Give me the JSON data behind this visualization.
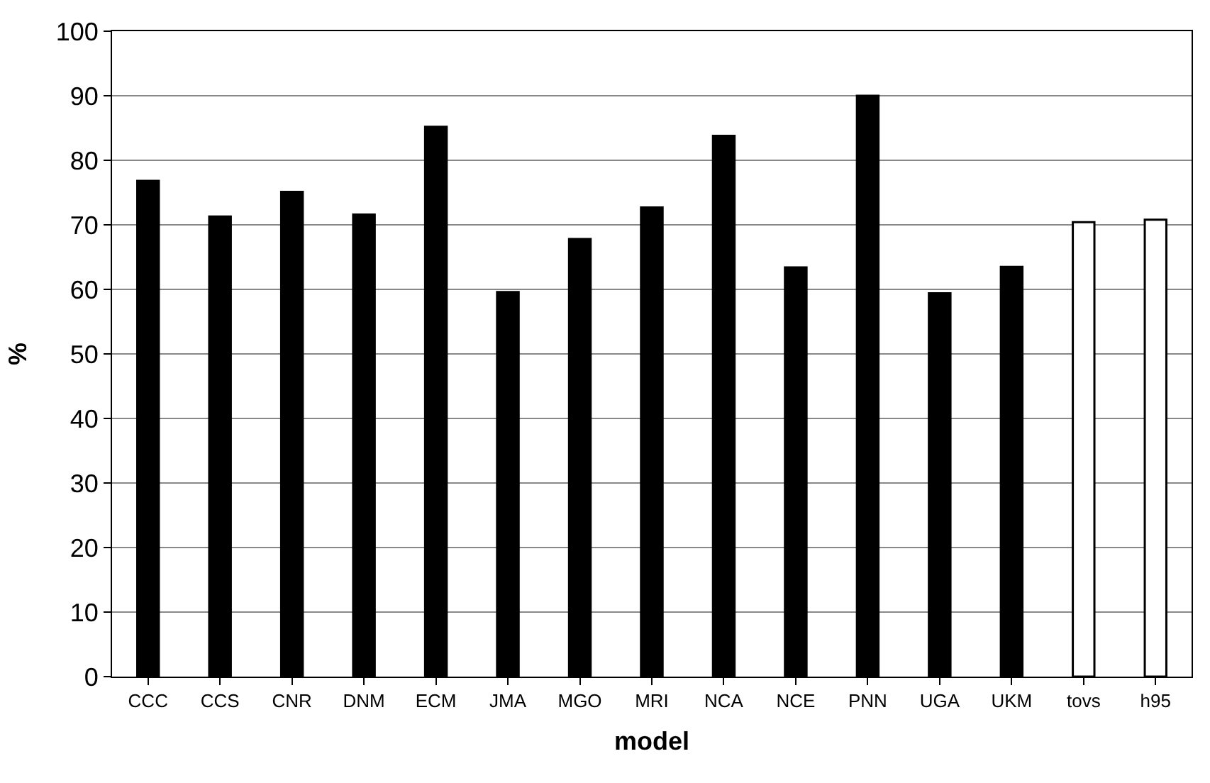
{
  "chart_data": {
    "type": "bar",
    "xlabel": "model",
    "ylabel": "%",
    "categories": [
      "CCC",
      "CCS",
      "CNR",
      "DNM",
      "ECM",
      "JMA",
      "MGO",
      "MRI",
      "NCA",
      "NCE",
      "PNN",
      "UGA",
      "UKM",
      "tovs",
      "h95"
    ],
    "values": [
      76.8,
      71.3,
      75.1,
      71.6,
      85.2,
      59.6,
      67.8,
      72.7,
      83.8,
      63.4,
      90,
      59.4,
      63.5,
      70.4,
      70.8
    ],
    "colors": [
      "#000000",
      "#000000",
      "#000000",
      "#000000",
      "#000000",
      "#000000",
      "#000000",
      "#000000",
      "#000000",
      "#000000",
      "#000000",
      "#000000",
      "#000000",
      "#ffffff",
      "#ffffff"
    ],
    "ylim": [
      0,
      100
    ],
    "yticks": [
      0,
      10,
      20,
      30,
      40,
      50,
      60,
      70,
      80,
      90,
      100
    ],
    "grid": "y",
    "legend": false
  }
}
